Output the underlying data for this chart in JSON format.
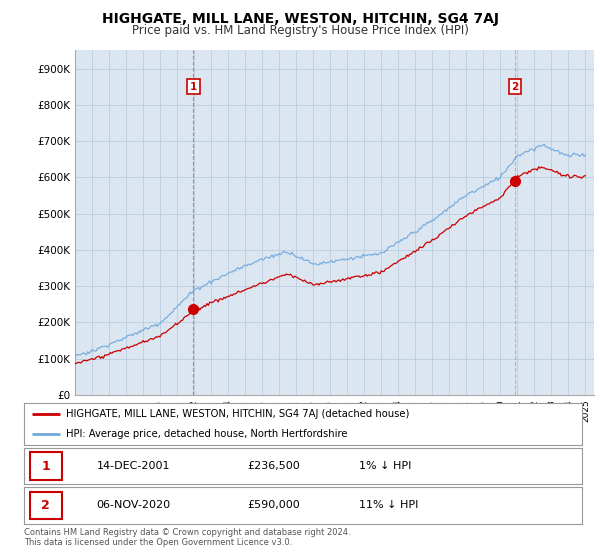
{
  "title": "HIGHGATE, MILL LANE, WESTON, HITCHIN, SG4 7AJ",
  "subtitle": "Price paid vs. HM Land Registry's House Price Index (HPI)",
  "ylabel_ticks": [
    "£0",
    "£100K",
    "£200K",
    "£300K",
    "£400K",
    "£500K",
    "£600K",
    "£700K",
    "£800K",
    "£900K"
  ],
  "ytick_values": [
    0,
    100000,
    200000,
    300000,
    400000,
    500000,
    600000,
    700000,
    800000,
    900000
  ],
  "ylim": [
    0,
    950000
  ],
  "xlim_start": 1995,
  "xlim_end": 2025.5,
  "transaction1": {
    "date_num": 2001.96,
    "price": 236500,
    "label": "1"
  },
  "transaction2": {
    "date_num": 2020.85,
    "price": 590000,
    "label": "2"
  },
  "legend_line1": "HIGHGATE, MILL LANE, WESTON, HITCHIN, SG4 7AJ (detached house)",
  "legend_line2": "HPI: Average price, detached house, North Hertfordshire",
  "table_row1": [
    "1",
    "14-DEC-2001",
    "£236,500",
    "1% ↓ HPI"
  ],
  "table_row2": [
    "2",
    "06-NOV-2020",
    "£590,000",
    "11% ↓ HPI"
  ],
  "footer": "Contains HM Land Registry data © Crown copyright and database right 2024.\nThis data is licensed under the Open Government Licence v3.0.",
  "hpi_color": "#6fa8dc",
  "price_color": "#cc0000",
  "vline1_color": "#e06060",
  "vline2_color": "#aaaaaa",
  "plot_bg": "#dce6f1",
  "grid_color": "#b8cee0",
  "title_fontsize": 10,
  "subtitle_fontsize": 8.5,
  "tick_fontsize": 7.5,
  "legend_fontsize": 7.5
}
